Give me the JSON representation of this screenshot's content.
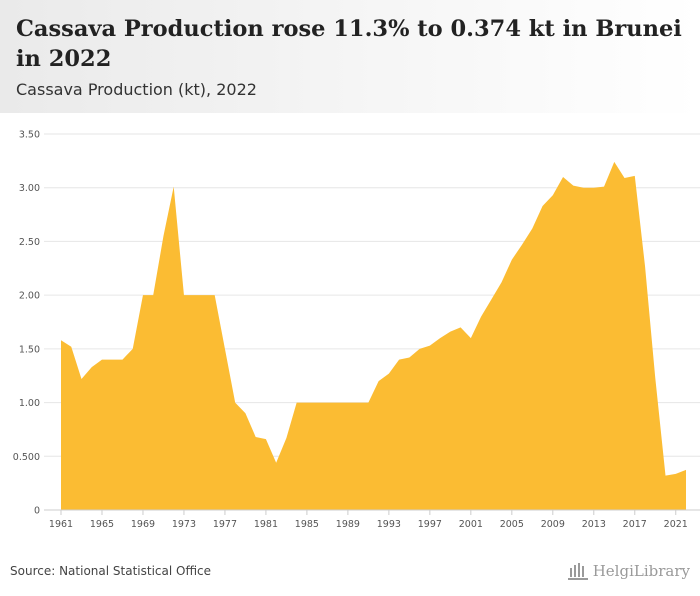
{
  "header": {
    "title": "Cassava Production rose 11.3% to 0.374 kt in Brunei in 2022",
    "subtitle": "Cassava Production (kt), 2022"
  },
  "footer": {
    "source": "Source: National Statistical Office",
    "brand": "HelgiLibrary"
  },
  "colors": {
    "area": "#FBBC33",
    "grid": "#e6e6e6",
    "axis": "#cccccc"
  },
  "chart_data": {
    "type": "area",
    "title": "Cassava Production rose 11.3% to 0.374 kt in Brunei in 2022",
    "subtitle": "Cassava Production (kt), 2022",
    "xlabel": "",
    "ylabel": "",
    "ylim": [
      0,
      3.5
    ],
    "y_ticks": [
      "0",
      "0.500",
      "1.00",
      "1.50",
      "2.00",
      "2.50",
      "3.00",
      "3.50"
    ],
    "x_ticks": [
      "1961",
      "1965",
      "1969",
      "1973",
      "1977",
      "1981",
      "1985",
      "1989",
      "1993",
      "1997",
      "2001",
      "2005",
      "2009",
      "2013",
      "2017",
      "2021"
    ],
    "grid": true,
    "legend": "none",
    "series": [
      {
        "x": [
          1961,
          1962,
          1963,
          1964,
          1965,
          1966,
          1967,
          1968,
          1969,
          1970,
          1971,
          1972,
          1973,
          1974,
          1975,
          1976,
          1977,
          1978,
          1979,
          1980,
          1981,
          1982,
          1983,
          1984,
          1985,
          1986,
          1987,
          1988,
          1989,
          1990,
          1991,
          1992,
          1993,
          1994,
          1995,
          1996,
          1997,
          1998,
          1999,
          2000,
          2001,
          2002,
          2003,
          2004,
          2005,
          2006,
          2007,
          2008,
          2009,
          2010,
          2011,
          2012,
          2013,
          2014,
          2015,
          2016,
          2017,
          2018,
          2019,
          2020,
          2021,
          2022
        ],
        "values": [
          1.58,
          1.52,
          1.22,
          1.33,
          1.4,
          1.4,
          1.4,
          1.5,
          2.0,
          2.0,
          2.55,
          3.01,
          2.0,
          2.0,
          2.0,
          2.0,
          1.5,
          1.0,
          0.9,
          0.68,
          0.66,
          0.44,
          0.67,
          1.0,
          1.0,
          1.0,
          1.0,
          1.0,
          1.0,
          1.0,
          1.0,
          1.2,
          1.27,
          1.4,
          1.42,
          1.5,
          1.53,
          1.6,
          1.66,
          1.7,
          1.6,
          1.8,
          1.96,
          2.12,
          2.33,
          2.47,
          2.62,
          2.83,
          2.93,
          3.1,
          3.02,
          3.0,
          3.0,
          3.01,
          3.24,
          3.09,
          3.11,
          2.27,
          1.23,
          0.32,
          0.336,
          0.374
        ]
      }
    ]
  }
}
